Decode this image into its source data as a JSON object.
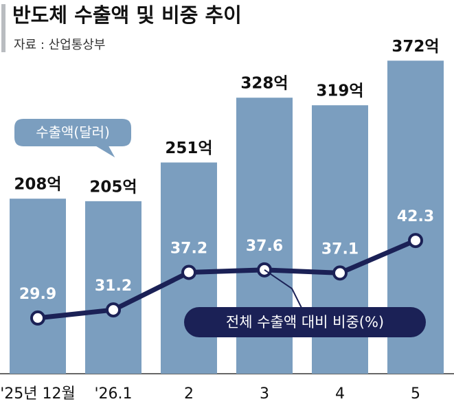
{
  "chart_data": {
    "type": "bar-line",
    "title": "반도체 수출액 및 비중 추이",
    "subtitle": "자료 : 산업통상부",
    "categories": [
      "'25년 12월",
      "'26.1",
      "2",
      "3",
      "4",
      "5"
    ],
    "series": [
      {
        "name": "수출액(달러)",
        "type": "bar",
        "color": "#7b9ebf",
        "values": [
          208,
          205,
          251,
          328,
          319,
          372
        ],
        "value_labels": [
          "208억",
          "205억",
          "251억",
          "328억",
          "319억",
          "372억"
        ]
      },
      {
        "name": "전체 수출액 대비 비중(%)",
        "type": "line",
        "axis": "y2",
        "color": "#1b2156",
        "values": [
          29.9,
          31.2,
          37.2,
          37.6,
          37.1,
          42.3
        ]
      }
    ],
    "ylim": [
      0,
      400
    ],
    "y2lim": [
      20,
      50
    ]
  }
}
